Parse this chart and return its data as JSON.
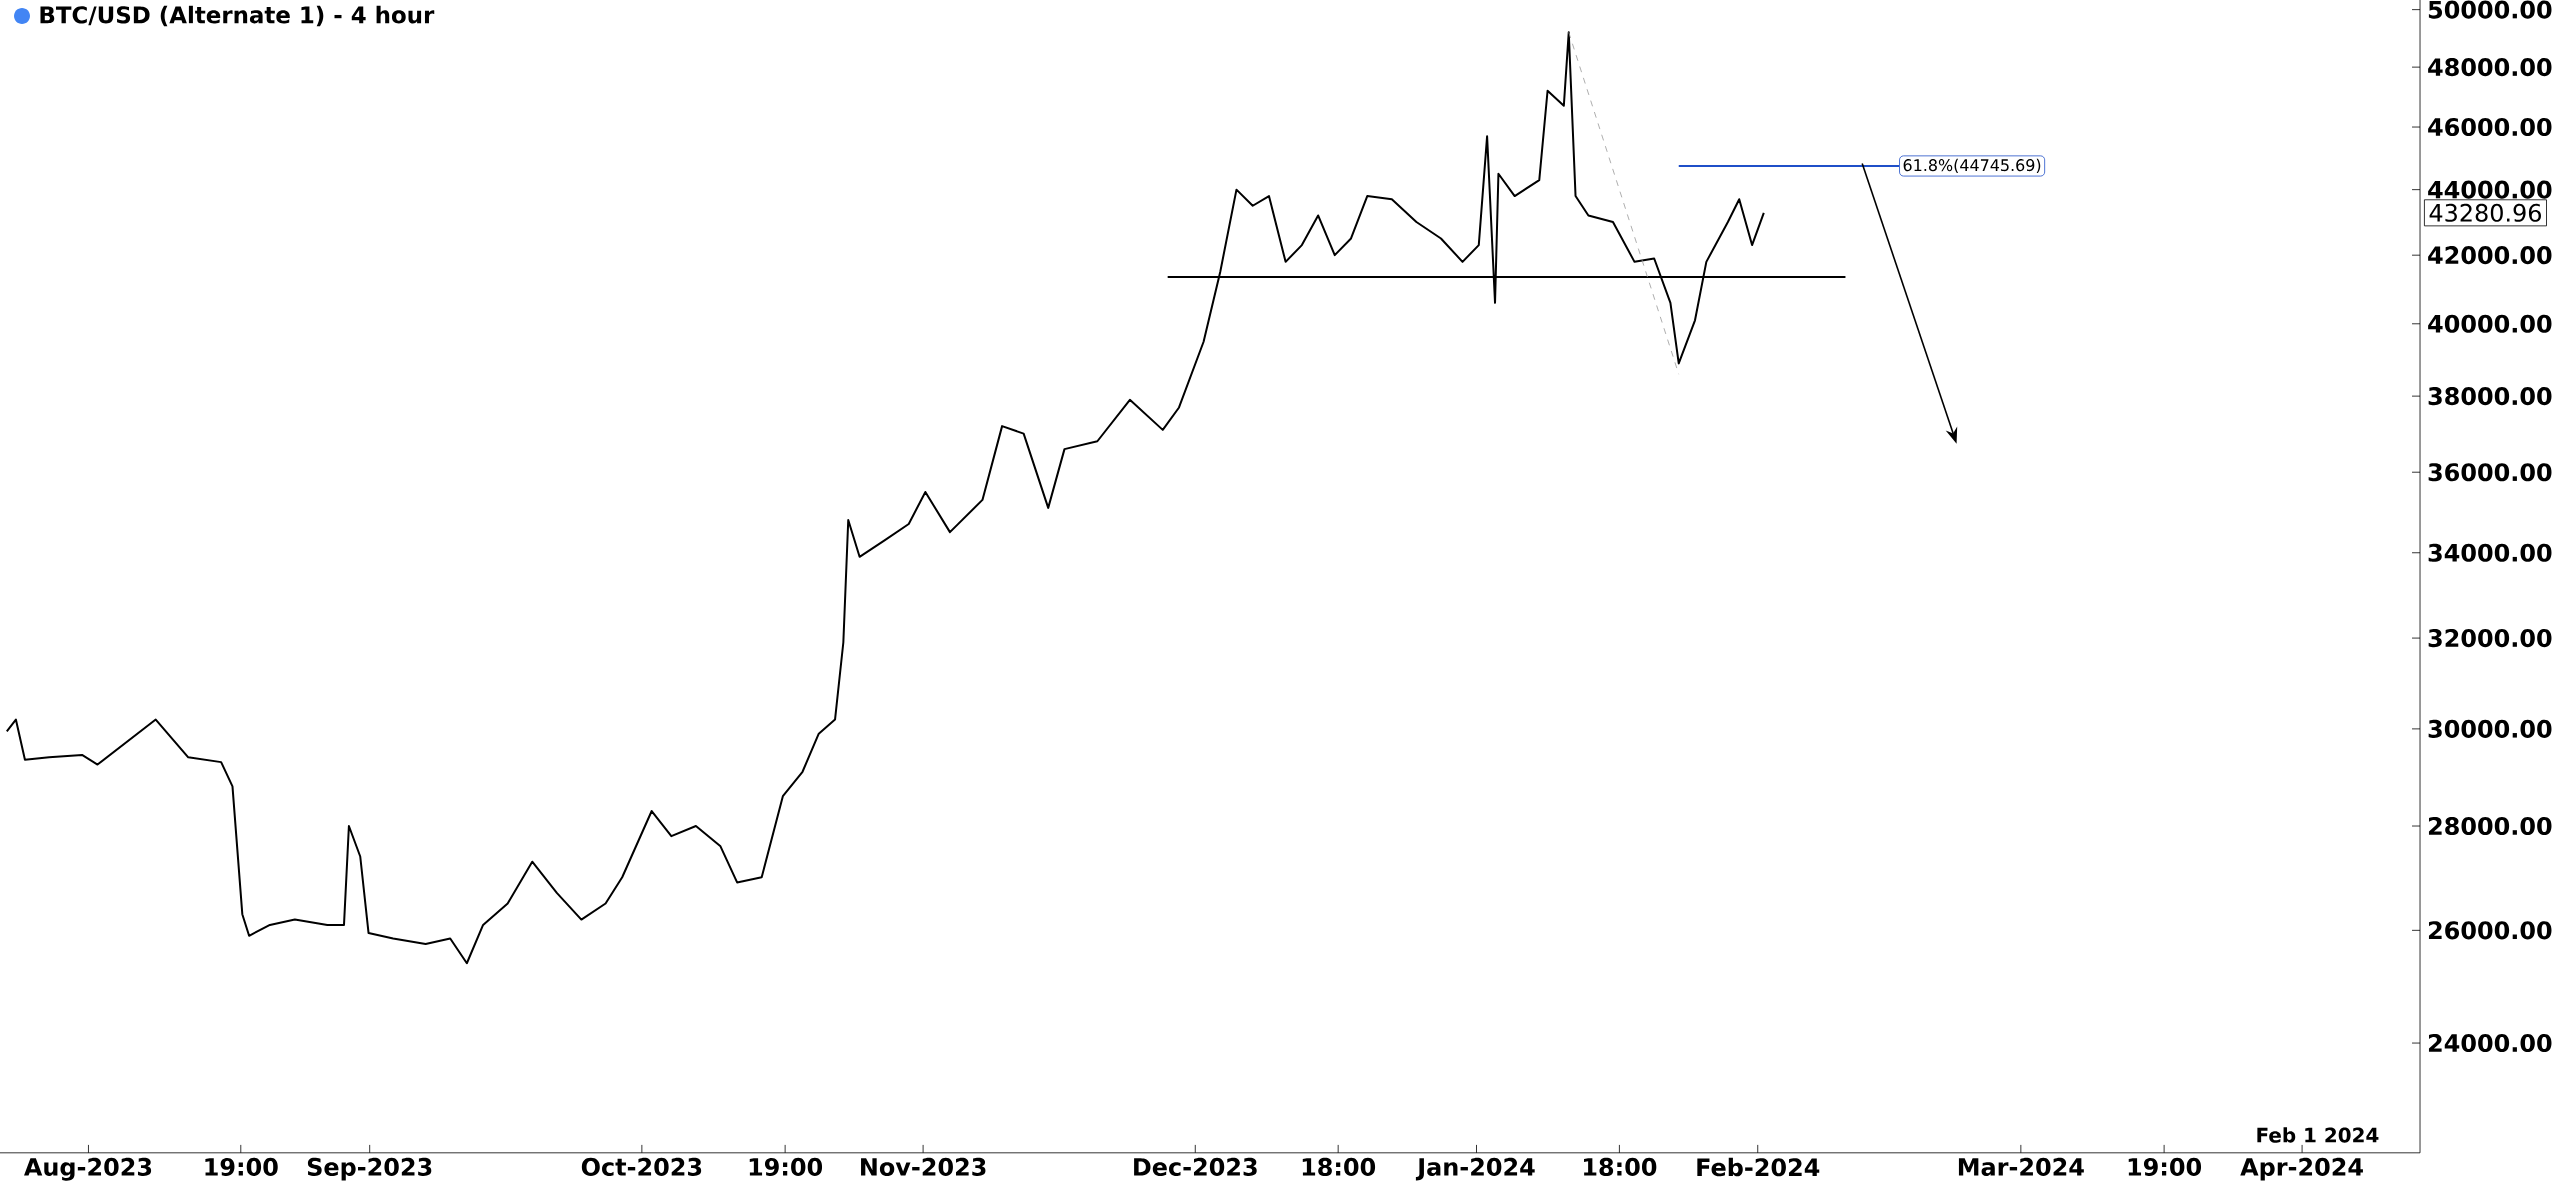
{
  "chart_data": {
    "type": "line",
    "title": "BTC/USD (Alternate 1) - 4 hour",
    "log": true,
    "xlim": [
      "2023-07-22T06:00",
      "2024-04-14"
    ],
    "ylim": [
      22200,
      50350
    ],
    "xticks": [
      {
        "value": "2023-08-01",
        "label": "Aug-2023"
      },
      {
        "value": "2023-08-17T19:00",
        "label": "19:00"
      },
      {
        "value": "2023-09-01",
        "label": "Sep-2023"
      },
      {
        "value": "2023-10-01",
        "label": "Oct-2023"
      },
      {
        "value": "2023-10-16T19:00",
        "label": "19:00"
      },
      {
        "value": "2023-11-01",
        "label": "Nov-2023"
      },
      {
        "value": "2023-12-01",
        "label": "Dec-2023"
      },
      {
        "value": "2023-12-16T18:00",
        "label": "18:00"
      },
      {
        "value": "2024-01-01",
        "label": "Jan-2024"
      },
      {
        "value": "2024-01-16T18:00",
        "label": "18:00"
      },
      {
        "value": "2024-02-01",
        "label": "Feb-2024"
      },
      {
        "value": "2024-03-01",
        "label": "Mar-2024"
      },
      {
        "value": "2024-03-16T19:00",
        "label": "19:00"
      },
      {
        "value": "2024-04-01",
        "label": "Apr-2024"
      }
    ],
    "yticks": [
      {
        "value": 24000,
        "label": "24000.00"
      },
      {
        "value": 26000,
        "label": "26000.00"
      },
      {
        "value": 28000,
        "label": "28000.00"
      },
      {
        "value": 30000,
        "label": "30000.00"
      },
      {
        "value": 32000,
        "label": "32000.00"
      },
      {
        "value": 34000,
        "label": "34000.00"
      },
      {
        "value": 36000,
        "label": "36000.00"
      },
      {
        "value": 38000,
        "label": "38000.00"
      },
      {
        "value": 40000,
        "label": "40000.00"
      },
      {
        "value": 42000,
        "label": "42000.00"
      },
      {
        "value": 44000,
        "label": "44000.00"
      },
      {
        "value": 46000,
        "label": "46000.00"
      },
      {
        "value": 48000,
        "label": "48000.00"
      },
      {
        "value": 50000,
        "label": "50000.00"
      }
    ],
    "grid": false,
    "series": [
      {
        "color": "#000000",
        "x": [
          "2023-07-23",
          "2023-07-24",
          "2023-07-25",
          "2023-07-27T16:00",
          "2023-07-31T07:00",
          "2023-08-02",
          "2023-08-08T10:00",
          "2023-08-12",
          "2023-08-15T15:00",
          "2023-08-16T21:00",
          "2023-08-17T23:00",
          "2023-08-18T17:00",
          "2023-08-21",
          "2023-08-23T18:00",
          "2023-08-27T08:00",
          "2023-08-29T04:00",
          "2023-08-29T17:00",
          "2023-08-30T23:00",
          "2023-08-31T21:00",
          "2023-09-03T14:00",
          "2023-09-07T04:00",
          "2023-09-09T21:00",
          "2023-09-11T17:00",
          "2023-09-13T12:00",
          "2023-09-16T05:00",
          "2023-09-18T22:00",
          "2023-09-21T15:00",
          "2023-09-24T08:00",
          "2023-09-27",
          "2023-09-28T20:00",
          "2023-10-02T02:00",
          "2023-10-04T06:00",
          "2023-10-06T23:00",
          "2023-10-09T16:00",
          "2023-10-11T12:00",
          "2023-10-14T05:00",
          "2023-10-16T13:00",
          "2023-10-18T17:00",
          "2023-10-20T12:00",
          "2023-10-22T07:00",
          "2023-10-23T05:00",
          "2023-10-23T18:00",
          "2023-10-25",
          "2023-10-27T18:00",
          "2023-10-30T10:00",
          "2023-11-01T06:00",
          "2023-11-03T23:00",
          "2023-11-07T13:00",
          "2023-11-09T17:00",
          "2023-11-12T02:00",
          "2023-11-14T19:00",
          "2023-11-16T14:00",
          "2023-11-20T05:00",
          "2023-11-23T19:00",
          "2023-11-27T10:00",
          "2023-11-29T05:00",
          "2023-12-01T22:00",
          "2023-12-03T18:00",
          "2023-12-05T13:00",
          "2023-12-07T08:00",
          "2023-12-09T03:00",
          "2023-12-10T23:00",
          "2023-12-12T18:00",
          "2023-12-14T13:00",
          "2023-12-16T09:00",
          "2023-12-18T04:00",
          "2023-12-19T23:00",
          "2023-12-22T16:00",
          "2023-12-25T09:00",
          "2023-12-28T02:00",
          "2023-12-30T11:00",
          "2024-01-01T06:00",
          "2024-01-02T04:00",
          "2024-01-03T01:00",
          "2024-01-03T10:00",
          "2024-01-05T05:00",
          "2024-01-07T22:00",
          "2024-01-08T20:00",
          "2024-01-10T15:00",
          "2024-01-11T04:00",
          "2024-01-11T22:00",
          "2024-01-13T08:00",
          "2024-01-16T01:00",
          "2024-01-18T10:00",
          "2024-01-20T14:00",
          "2024-01-22T09:00",
          "2024-01-23T07:00",
          "2024-01-25T02:00",
          "2024-01-26T08:00",
          "2024-01-28T17:00",
          "2024-01-29T23:00",
          "2024-01-31T09:00",
          "2024-02-01T16:00"
        ],
        "values": [
          29950,
          30200,
          29350,
          29400,
          29450,
          29250,
          30200,
          29400,
          29300,
          28800,
          26300,
          25900,
          26100,
          26200,
          26100,
          26100,
          28000,
          27400,
          25950,
          25850,
          25750,
          25850,
          25400,
          26100,
          26500,
          27300,
          26700,
          26200,
          26500,
          27000,
          28300,
          27800,
          28000,
          27600,
          26900,
          27000,
          28600,
          29100,
          29900,
          30200,
          31900,
          34800,
          33900,
          34300,
          34700,
          35500,
          34500,
          35300,
          37200,
          37000,
          35100,
          36600,
          36800,
          37900,
          37100,
          37700,
          39500,
          41500,
          44000,
          43500,
          43800,
          41800,
          42300,
          43200,
          42000,
          42500,
          43800,
          43700,
          43000,
          42500,
          41800,
          42300,
          45700,
          40600,
          44500,
          43800,
          44300,
          47200,
          46700,
          49200,
          43800,
          43200,
          43000,
          41800,
          41900,
          40600,
          38900,
          40100,
          41800,
          43000,
          43700,
          42300,
          43280.96
        ]
      },
      {
        "color": "#000000",
        "x": [
          "2023-11-27T23:00",
          "2024-02-10T16:00"
        ],
        "values": [
          41350,
          41350
        ]
      },
      {
        "color": "#999999",
        "line_style": "dashed",
        "x": [
          "2024-01-11T04:00",
          "2024-01-23T07:00"
        ],
        "values": [
          49200,
          38600
        ]
      },
      {
        "color": "#1f4fc8",
        "x": [
          "2024-01-23T07:00",
          "2024-02-16T14:00"
        ],
        "values": [
          44745.69,
          44745.69
        ]
      }
    ],
    "annotations": [
      {
        "text": "61.8%(44745.69)",
        "x": "2024-02-16T14:00",
        "y": 44745.69
      },
      "43280.96",
      "Feb 1 2024"
    ]
  }
}
